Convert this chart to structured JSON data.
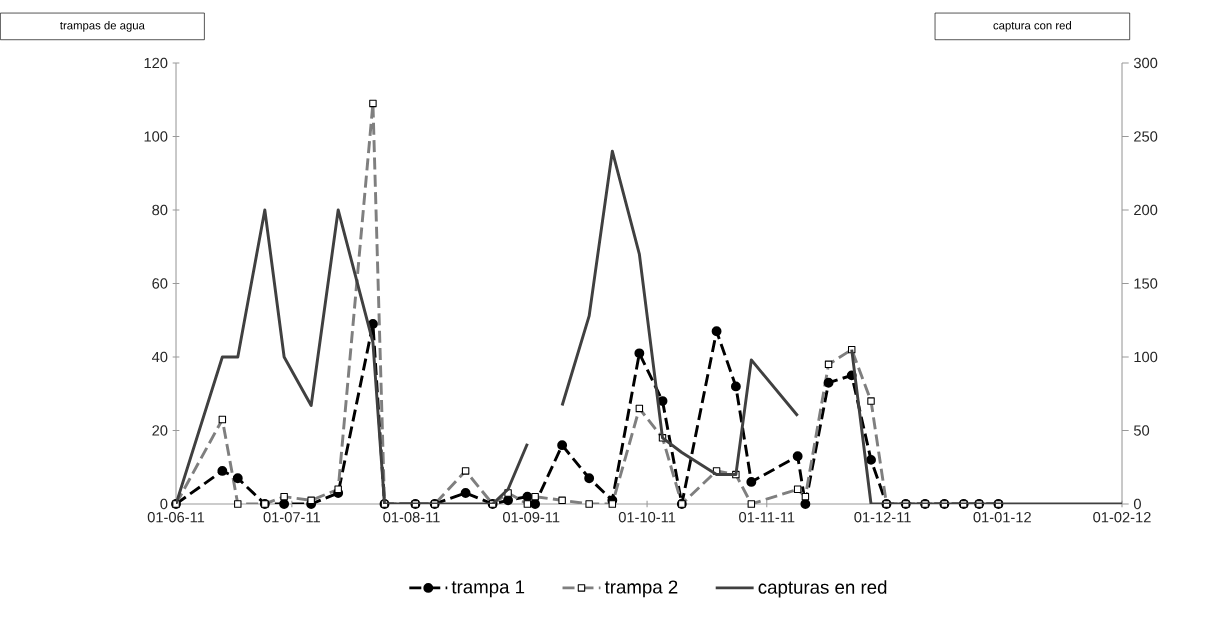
{
  "chart_data": {
    "type": "line",
    "ylabel": "trampas de agua",
    "y2label": "captura con red",
    "xlim": [
      "2011-06-01",
      "2012-02-01"
    ],
    "xticks": [
      {
        "value": "2011-06-01",
        "label": "01-06-11"
      },
      {
        "value": "2011-07-01",
        "label": "01-07-11"
      },
      {
        "value": "2011-08-01",
        "label": "01-08-11"
      },
      {
        "value": "2011-09-01",
        "label": "01-09-11"
      },
      {
        "value": "2011-10-01",
        "label": "01-10-11"
      },
      {
        "value": "2011-11-01",
        "label": "01-11-11"
      },
      {
        "value": "2011-12-01",
        "label": "01-12-11"
      },
      {
        "value": "2012-01-01",
        "label": "01-01-12"
      },
      {
        "value": "2012-02-01",
        "label": "01-02-12"
      }
    ],
    "ylim": [
      0,
      120
    ],
    "yticks": [
      0,
      20,
      40,
      60,
      80,
      100,
      120
    ],
    "y2lim": [
      0,
      300
    ],
    "y2ticks": [
      0,
      50,
      100,
      150,
      200,
      250,
      300
    ],
    "grid": false,
    "legend": "bottom",
    "series": [
      {
        "name": "trampa 1",
        "color": "#000000",
        "marker": "circle",
        "line_style": "dashed",
        "x": [
          "2011-06-01",
          "2011-06-13",
          "2011-06-17",
          "2011-06-24",
          "2011-06-29",
          "2011-07-06",
          "2011-07-13",
          "2011-07-22",
          "2011-07-25",
          "2011-08-02",
          "2011-08-07",
          "2011-08-15",
          "2011-08-22",
          "2011-08-26",
          "2011-08-31",
          "2011-09-02",
          "2011-09-09",
          "2011-09-16",
          "2011-09-22",
          "2011-09-29",
          "2011-10-05",
          "2011-10-10",
          "2011-10-19",
          "2011-10-24",
          "2011-10-28",
          "2011-11-09",
          "2011-11-11",
          "2011-11-17",
          "2011-11-23",
          "2011-11-28",
          "2011-12-02",
          "2011-12-07",
          "2011-12-12",
          "2011-12-17",
          "2011-12-22",
          "2011-12-26",
          "2011-12-31"
        ],
        "values": [
          0,
          9,
          7,
          0,
          0,
          0,
          3,
          49,
          0,
          0,
          0,
          3,
          0,
          1,
          2,
          0,
          16,
          7,
          1,
          41,
          28,
          0,
          47,
          32,
          6,
          13,
          0,
          33,
          35,
          12,
          0,
          0,
          0,
          0,
          0,
          0,
          0
        ]
      },
      {
        "name": "trampa 2",
        "color": "#7f7f7f",
        "marker": "square",
        "line_style": "dashed",
        "x": [
          "2011-06-01",
          "2011-06-13",
          "2011-06-17",
          "2011-06-24",
          "2011-06-29",
          "2011-07-06",
          "2011-07-13",
          "2011-07-22",
          "2011-07-25",
          "2011-08-02",
          "2011-08-07",
          "2011-08-15",
          "2011-08-22",
          "2011-08-26",
          "2011-08-31",
          "2011-09-02",
          "2011-09-09",
          "2011-09-16",
          "2011-09-22",
          "2011-09-29",
          "2011-10-05",
          "2011-10-10",
          "2011-10-19",
          "2011-10-24",
          "2011-10-28",
          "2011-11-09",
          "2011-11-11",
          "2011-11-17",
          "2011-11-23",
          "2011-11-28",
          "2011-12-02",
          "2011-12-07",
          "2011-12-12",
          "2011-12-17",
          "2011-12-22",
          "2011-12-26",
          "2011-12-31"
        ],
        "values": [
          0,
          23,
          0,
          0,
          2,
          1,
          4,
          109,
          0,
          0,
          0,
          9,
          0,
          3,
          0,
          2,
          1,
          0,
          0,
          26,
          18,
          0,
          9,
          8,
          0,
          4,
          2,
          38,
          42,
          28,
          0,
          0,
          0,
          0,
          0,
          0,
          0
        ]
      },
      {
        "name": "capturas en red",
        "color": "#404040",
        "marker": "none",
        "line_style": "solid",
        "axis": "y2",
        "x": [
          "2011-06-01",
          "2011-06-13",
          "2011-06-17",
          "2011-06-24",
          "2011-06-29",
          "2011-07-06",
          "2011-07-13",
          "2011-07-22",
          "2011-07-25",
          "2011-08-02",
          "2011-08-07",
          "2011-08-15",
          "2011-08-22",
          "2011-08-26",
          "2011-08-31",
          "2011-09-02",
          "2011-09-09",
          "2011-09-16",
          "2011-09-22",
          "2011-09-29",
          "2011-10-05",
          "2011-10-10",
          "2011-10-19",
          "2011-10-24",
          "2011-10-28",
          "2011-11-09",
          "2011-11-11",
          "2011-11-17",
          "2011-11-23",
          "2011-11-28",
          "2011-12-02",
          "2011-12-31",
          "2012-02-01"
        ],
        "values": [
          0,
          100,
          100,
          200,
          100,
          67,
          200,
          110,
          0,
          0,
          0,
          0,
          0,
          10,
          41,
          null,
          67,
          128,
          240,
          170,
          45,
          35,
          20,
          20,
          98,
          60,
          null,
          null,
          105,
          0,
          0,
          0,
          0
        ]
      }
    ]
  }
}
